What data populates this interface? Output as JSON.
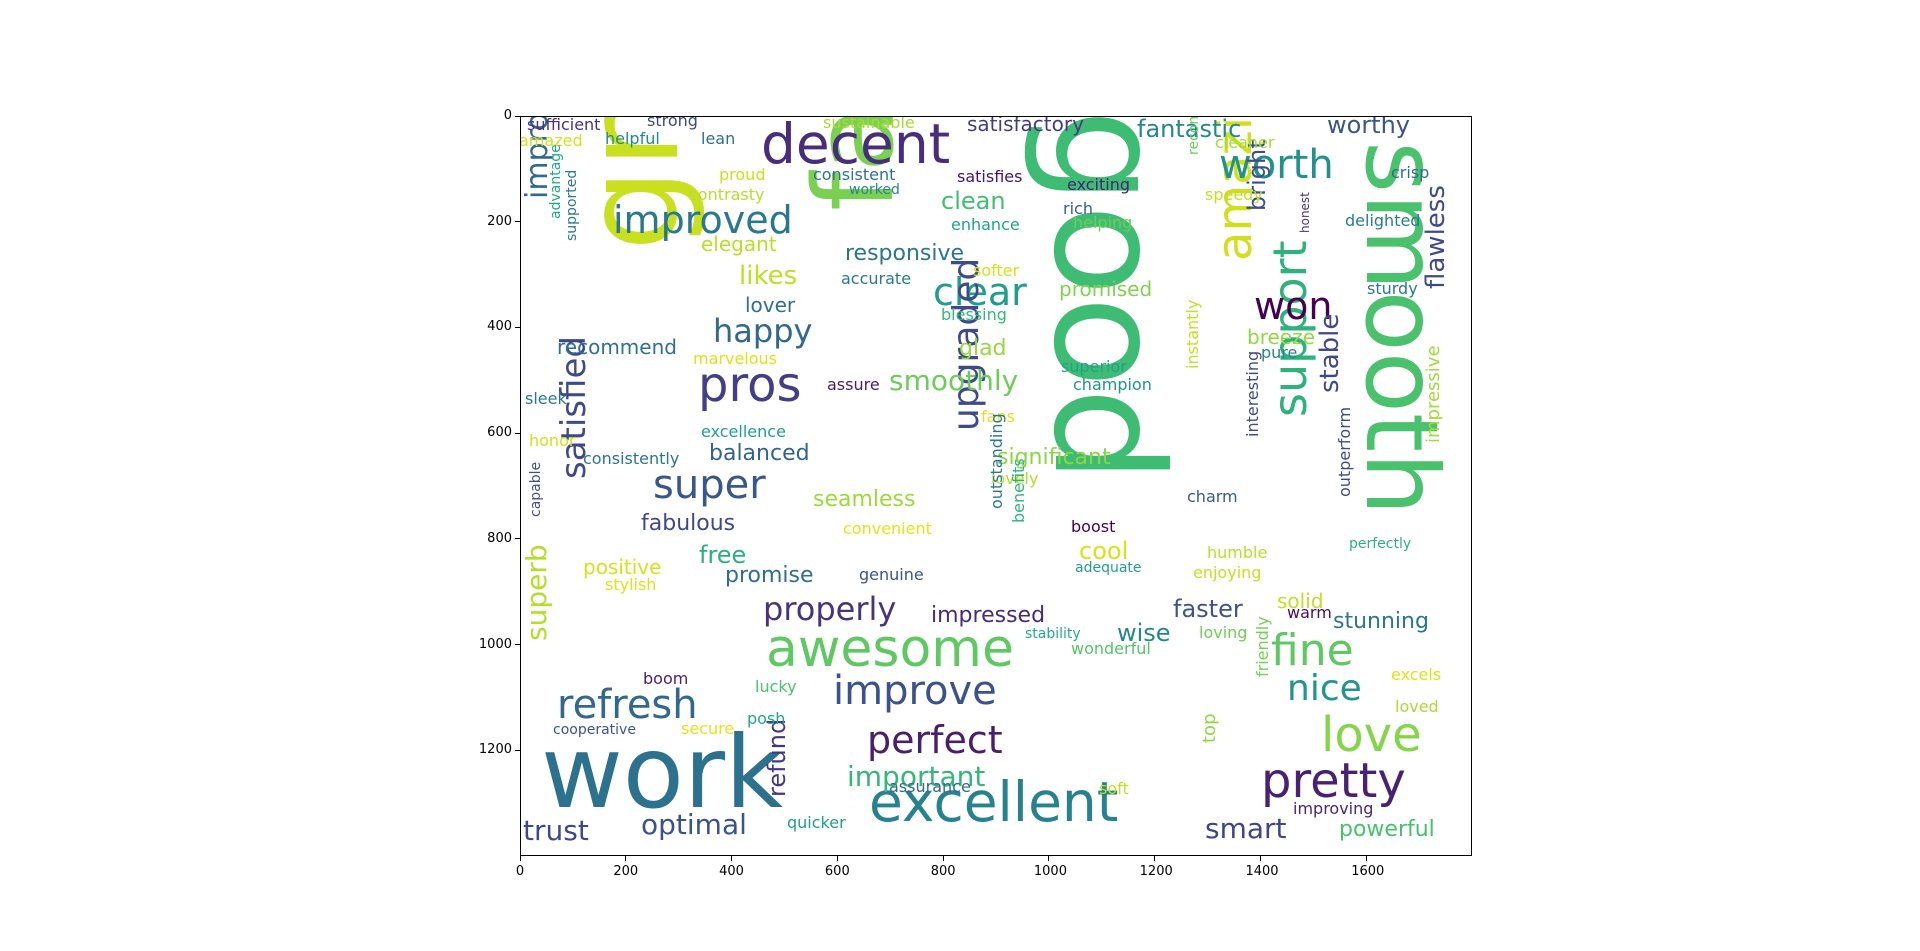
{
  "x_ticks": [
    "0",
    "200",
    "400",
    "600",
    "800",
    "1000",
    "1200",
    "1400",
    "1600"
  ],
  "y_ticks": [
    "0",
    "200",
    "400",
    "600",
    "800",
    "1000",
    "1200"
  ],
  "axis_domain": {
    "x_max": 1800,
    "y_max": 1400
  },
  "words": [
    {
      "text": "good",
      "c": "#3fbc73",
      "s": 150,
      "r": 90
    },
    {
      "text": "great",
      "c": "#c8e020",
      "s": 130,
      "r": 270
    },
    {
      "text": "fast",
      "c": "#7ad151",
      "s": 110,
      "r": 270
    },
    {
      "text": "smooth",
      "c": "#4ac16d",
      "s": 100,
      "r": 90
    },
    {
      "text": "work",
      "c": "#2c728e",
      "s": 100
    },
    {
      "text": "decent",
      "c": "#472d7b",
      "s": 55
    },
    {
      "text": "excellent",
      "c": "#26828e",
      "s": 55
    },
    {
      "text": "awesome",
      "c": "#5ec962",
      "s": 52
    },
    {
      "text": "pretty",
      "c": "#482173",
      "s": 48
    },
    {
      "text": "love",
      "c": "#86d549",
      "s": 48
    },
    {
      "text": "pros",
      "c": "#433e85",
      "s": 48
    },
    {
      "text": "amazing",
      "c": "#d0e11c",
      "s": 48,
      "r": 270
    },
    {
      "text": "support",
      "c": "#2db27d",
      "s": 46,
      "r": 270
    },
    {
      "text": "fine",
      "c": "#5ec962",
      "s": 44
    },
    {
      "text": "refresh",
      "c": "#31688e",
      "s": 40
    },
    {
      "text": "improve",
      "c": "#3b528b",
      "s": 40
    },
    {
      "text": "super",
      "c": "#38588c",
      "s": 40
    },
    {
      "text": "worth",
      "c": "#21918c",
      "s": 40
    },
    {
      "text": "improved",
      "c": "#2a788e",
      "s": 38
    },
    {
      "text": "perfect",
      "c": "#481f70",
      "s": 38
    },
    {
      "text": "clear",
      "c": "#1f9e89",
      "s": 38
    },
    {
      "text": "won",
      "c": "#440154",
      "s": 38
    },
    {
      "text": "nice",
      "c": "#1f968b",
      "s": 36
    },
    {
      "text": "upgraded",
      "c": "#3e4a89",
      "s": 36,
      "r": 270
    },
    {
      "text": "satisfied",
      "c": "#3e4989",
      "s": 34,
      "r": 270
    },
    {
      "text": "properly",
      "c": "#46337e",
      "s": 32
    },
    {
      "text": "happy",
      "c": "#31688e",
      "s": 32
    },
    {
      "text": "improvement",
      "c": "#31688e",
      "s": 30,
      "r": 270
    },
    {
      "text": "important",
      "c": "#35b779",
      "s": 28
    },
    {
      "text": "optimal",
      "c": "#3b528b",
      "s": 28
    },
    {
      "text": "trust",
      "c": "#3e4989",
      "s": 28
    },
    {
      "text": "smart",
      "c": "#414487",
      "s": 28
    },
    {
      "text": "smoothly",
      "c": "#6ccd5a",
      "s": 28
    },
    {
      "text": "superb",
      "c": "#b5de2b",
      "s": 28,
      "r": 270
    },
    {
      "text": "stable",
      "c": "#3f4889",
      "s": 26,
      "r": 270
    },
    {
      "text": "flawless",
      "c": "#3e4a89",
      "s": 26,
      "r": 270
    },
    {
      "text": "likes",
      "c": "#bddf26",
      "s": 26
    },
    {
      "text": "fantastic",
      "c": "#24868e",
      "s": 24
    },
    {
      "text": "worthy",
      "c": "#39568c",
      "s": 24
    },
    {
      "text": "bright",
      "c": "#3d4e8a",
      "s": 24,
      "r": 270
    },
    {
      "text": "faster",
      "c": "#3b528b",
      "s": 24
    },
    {
      "text": "wise",
      "c": "#23888e",
      "s": 24
    },
    {
      "text": "refund",
      "c": "#453781",
      "s": 24,
      "r": 270
    },
    {
      "text": "fabulous",
      "c": "#3f4889",
      "s": 22
    },
    {
      "text": "free",
      "c": "#2ab07f",
      "s": 24
    },
    {
      "text": "clean",
      "c": "#42be71",
      "s": 24
    },
    {
      "text": "responsive",
      "c": "#2a768e",
      "s": 22
    },
    {
      "text": "impressed",
      "c": "#472a7a",
      "s": 22
    },
    {
      "text": "stunning",
      "c": "#2a778e",
      "s": 22
    },
    {
      "text": "powerful",
      "c": "#48c16e",
      "s": 22
    },
    {
      "text": "cool",
      "c": "#d8e219",
      "s": 24
    },
    {
      "text": "seamless",
      "c": "#9dd93b",
      "s": 22
    },
    {
      "text": "balanced",
      "c": "#33638d",
      "s": 22
    },
    {
      "text": "glad",
      "c": "#95d840",
      "s": 22
    },
    {
      "text": "promise",
      "c": "#2e6f8e",
      "s": 22
    },
    {
      "text": "significant",
      "c": "#8bd646",
      "s": 22
    },
    {
      "text": "satisfactory",
      "c": "#433d84",
      "s": 20
    },
    {
      "text": "lover",
      "c": "#2d708e",
      "s": 20
    },
    {
      "text": "promised",
      "c": "#7fd34e",
      "s": 20
    },
    {
      "text": "breeze",
      "c": "#93d741",
      "s": 20
    },
    {
      "text": "recommend",
      "c": "#2d718e",
      "s": 20
    },
    {
      "text": "positive",
      "c": "#d5e21a",
      "s": 20
    },
    {
      "text": "elegant",
      "c": "#bade28",
      "s": 20
    },
    {
      "text": "solid",
      "c": "#c0df25",
      "s": 20
    },
    {
      "text": "impressive",
      "c": "#a2da37",
      "s": 18,
      "r": 270
    },
    {
      "text": "outperform",
      "c": "#3e4989",
      "s": 16,
      "r": 270
    },
    {
      "text": "excels",
      "c": "#dde318",
      "s": 16
    },
    {
      "text": "loved",
      "c": "#a8db34",
      "s": 16
    },
    {
      "text": "improving",
      "c": "#482576",
      "s": 16
    },
    {
      "text": "exciting",
      "c": "#482475",
      "s": 16
    },
    {
      "text": "helping",
      "c": "#6ccd5a",
      "s": 16
    },
    {
      "text": "rich",
      "c": "#355f8d",
      "s": 16
    },
    {
      "text": "delighted",
      "c": "#287d8e",
      "s": 16
    },
    {
      "text": "crisp",
      "c": "#2f6c8e",
      "s": 16
    },
    {
      "text": "sturdy",
      "c": "#2a788e",
      "s": 16
    },
    {
      "text": "speedy",
      "c": "#c2df23",
      "s": 16
    },
    {
      "text": "cleaner",
      "c": "#a2da37",
      "s": 16
    },
    {
      "text": "pure",
      "c": "#26828e",
      "s": 16
    },
    {
      "text": "superior",
      "c": "#20a386",
      "s": 16
    },
    {
      "text": "champion",
      "c": "#1f958b",
      "s": 16
    },
    {
      "text": "charm",
      "c": "#38598c",
      "s": 16
    },
    {
      "text": "boost",
      "c": "#440154",
      "s": 16
    },
    {
      "text": "humble",
      "c": "#b8de29",
      "s": 16
    },
    {
      "text": "enjoying",
      "c": "#c5e021",
      "s": 16
    },
    {
      "text": "warm",
      "c": "#471063",
      "s": 16
    },
    {
      "text": "loving",
      "c": "#6ece58",
      "s": 16
    },
    {
      "text": "wonderful",
      "c": "#54c568",
      "s": 16
    },
    {
      "text": "genuine",
      "c": "#3a548c",
      "s": 16
    },
    {
      "text": "convenient",
      "c": "#e5e419",
      "s": 16
    },
    {
      "text": "lovely",
      "c": "#b2dd2d",
      "s": 16
    },
    {
      "text": "fans",
      "c": "#dde318",
      "s": 16
    },
    {
      "text": "assure",
      "c": "#481b6d",
      "s": 16
    },
    {
      "text": "blessing",
      "c": "#35b779",
      "s": 16
    },
    {
      "text": "accurate",
      "c": "#2a788e",
      "s": 16
    },
    {
      "text": "enhance",
      "c": "#20a486",
      "s": 16
    },
    {
      "text": "satisfies",
      "c": "#471365",
      "s": 16
    },
    {
      "text": "consistent",
      "c": "#2c728e",
      "s": 16
    },
    {
      "text": "worked",
      "c": "#25858e",
      "s": 14
    },
    {
      "text": "sustainable",
      "c": "#a8db34",
      "s": 16
    },
    {
      "text": "strong",
      "c": "#3f4788",
      "s": 16
    },
    {
      "text": "sufficient",
      "c": "#46327e",
      "s": 16
    },
    {
      "text": "helpful",
      "c": "#23898e",
      "s": 16
    },
    {
      "text": "lean",
      "c": "#2d708e",
      "s": 16
    },
    {
      "text": "amazed",
      "c": "#d2e21b",
      "s": 16
    },
    {
      "text": "proud",
      "c": "#cde11d",
      "s": 16
    },
    {
      "text": "contrasty",
      "c": "#b5de2b",
      "s": 16
    },
    {
      "text": "marvelous",
      "c": "#dde318",
      "s": 16
    },
    {
      "text": "sleek",
      "c": "#2a788e",
      "s": 16
    },
    {
      "text": "honor",
      "c": "#d0e11c",
      "s": 16
    },
    {
      "text": "excellence",
      "c": "#1f9e89",
      "s": 16
    },
    {
      "text": "consistently",
      "c": "#2a768e",
      "s": 16
    },
    {
      "text": "stylish",
      "c": "#dde318",
      "s": 16
    },
    {
      "text": "boom",
      "c": "#481f70",
      "s": 16
    },
    {
      "text": "lucky",
      "c": "#4ac16d",
      "s": 16
    },
    {
      "text": "posh",
      "c": "#22a785",
      "s": 16
    },
    {
      "text": "secure",
      "c": "#e5e419",
      "s": 16
    },
    {
      "text": "cooperative",
      "c": "#3b528b",
      "s": 14
    },
    {
      "text": "quicker",
      "c": "#1fa088",
      "s": 16
    },
    {
      "text": "assurance",
      "c": "#31688e",
      "s": 16
    },
    {
      "text": "soft",
      "c": "#c2df23",
      "s": 16
    },
    {
      "text": "stability",
      "c": "#25ab82",
      "s": 14
    },
    {
      "text": "adequate",
      "c": "#1fa187",
      "s": 14
    },
    {
      "text": "perfectly",
      "c": "#2ab07f",
      "s": 14
    },
    {
      "text": "softer",
      "c": "#d8e219",
      "s": 16
    },
    {
      "text": "recommended",
      "c": "#6ccd5a",
      "s": 14,
      "r": 270
    },
    {
      "text": "honest",
      "c": "#46327e",
      "s": 12,
      "r": 270
    },
    {
      "text": "advantage",
      "c": "#22a884",
      "s": 14,
      "r": 270
    },
    {
      "text": "supported",
      "c": "#2a778e",
      "s": 14,
      "r": 270
    },
    {
      "text": "capable",
      "c": "#3b528b",
      "s": 14,
      "r": 270
    },
    {
      "text": "instantly",
      "c": "#c2df23",
      "s": 16,
      "r": 270
    },
    {
      "text": "interesting",
      "c": "#3e4a89",
      "s": 16,
      "r": 270
    },
    {
      "text": "outstanding",
      "c": "#2a788e",
      "s": 16,
      "r": 270
    },
    {
      "text": "benefits",
      "c": "#2db27d",
      "s": 16,
      "r": 270
    },
    {
      "text": "friendly",
      "c": "#73d056",
      "s": 16,
      "r": 270
    },
    {
      "text": "top",
      "c": "#8fd744",
      "s": 18,
      "r": 270
    }
  ]
}
